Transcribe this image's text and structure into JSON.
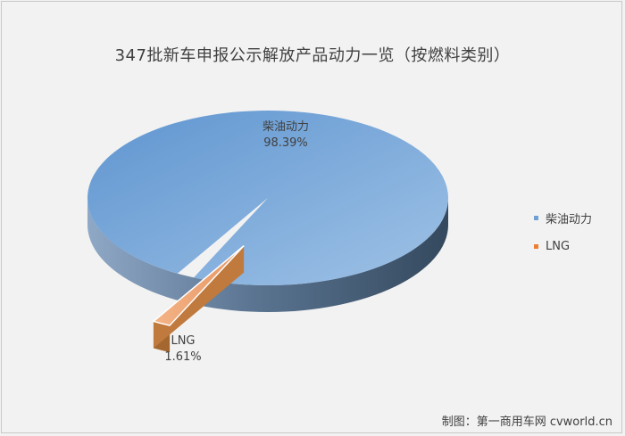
{
  "chart_data": {
    "type": "pie",
    "title": "347批新车申报公示解放产品动力一览（按燃料类别）",
    "categories": [
      "柴油动力",
      "LNG"
    ],
    "values": [
      98.39,
      1.61
    ],
    "value_labels": [
      "98.39%",
      "1.61%"
    ],
    "unit": "%",
    "legend": "right",
    "colors": [
      "#6fa0d4",
      "#f0a070"
    ]
  },
  "credit": "制图：第一商用车网 cvworld.cn"
}
